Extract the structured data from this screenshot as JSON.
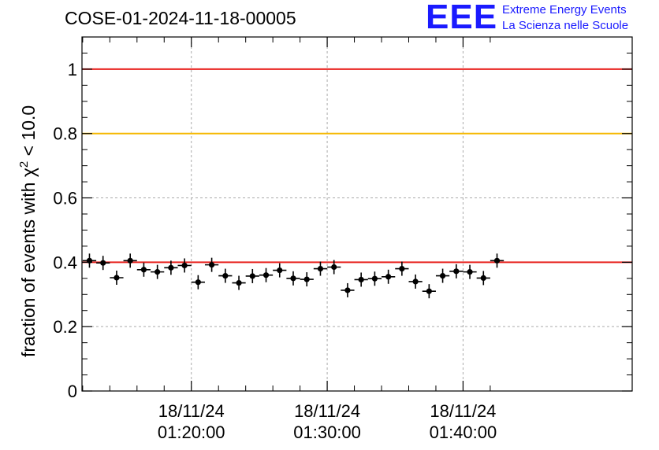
{
  "header": {
    "run_id": "COSE-01-2024-11-18-00005",
    "logo_mark": "EEE",
    "logo_line1": "Extreme Energy Events",
    "logo_line2": "La Scienza nelle Scuole"
  },
  "chart_data": {
    "type": "scatter",
    "ylabel_main": "fraction of events with χ",
    "ylabel_sup": "2",
    "ylabel_tail": " < 10.0",
    "ylim": [
      0,
      1.1
    ],
    "yticks": [
      {
        "value": 0,
        "label": "0"
      },
      {
        "value": 0.2,
        "label": "0.2"
      },
      {
        "value": 0.4,
        "label": "0.4"
      },
      {
        "value": 0.6,
        "label": "0.6"
      },
      {
        "value": 0.8,
        "label": "0.8"
      },
      {
        "value": 1,
        "label": "1"
      }
    ],
    "x_unit": "minutes after 18/11/24 01:10:00",
    "xlim": [
      1.95,
      42.45
    ],
    "xticks": [
      {
        "value": 10,
        "date": "18/11/24",
        "time": "01:20:00"
      },
      {
        "value": 20,
        "date": "18/11/24",
        "time": "01:30:00"
      },
      {
        "value": 30,
        "date": "18/11/24",
        "time": "01:40:00"
      }
    ],
    "minor_xticks": [
      2,
      4,
      6,
      8,
      12,
      14,
      16,
      18,
      22,
      24,
      26,
      28,
      32
    ],
    "grid": true,
    "reference_lines": [
      {
        "y": 1.0,
        "color": "#e8231f"
      },
      {
        "y": 0.8,
        "color": "#f5b800"
      },
      {
        "y": 0.4,
        "color": "#e8231f"
      }
    ],
    "x_halfwidth": 0.5,
    "y_error": 0.022,
    "points": [
      {
        "x": 2.5,
        "y": 0.405
      },
      {
        "x": 3.5,
        "y": 0.398
      },
      {
        "x": 4.5,
        "y": 0.352
      },
      {
        "x": 5.5,
        "y": 0.405
      },
      {
        "x": 6.5,
        "y": 0.377
      },
      {
        "x": 7.5,
        "y": 0.37
      },
      {
        "x": 8.5,
        "y": 0.383
      },
      {
        "x": 9.5,
        "y": 0.39
      },
      {
        "x": 10.5,
        "y": 0.338
      },
      {
        "x": 11.5,
        "y": 0.392
      },
      {
        "x": 12.5,
        "y": 0.358
      },
      {
        "x": 13.5,
        "y": 0.336
      },
      {
        "x": 14.5,
        "y": 0.357
      },
      {
        "x": 15.5,
        "y": 0.36
      },
      {
        "x": 16.5,
        "y": 0.375
      },
      {
        "x": 17.5,
        "y": 0.35
      },
      {
        "x": 18.5,
        "y": 0.347
      },
      {
        "x": 19.5,
        "y": 0.38
      },
      {
        "x": 20.5,
        "y": 0.385
      },
      {
        "x": 21.5,
        "y": 0.313
      },
      {
        "x": 22.5,
        "y": 0.346
      },
      {
        "x": 23.5,
        "y": 0.349
      },
      {
        "x": 24.5,
        "y": 0.355
      },
      {
        "x": 25.5,
        "y": 0.38
      },
      {
        "x": 26.5,
        "y": 0.34
      },
      {
        "x": 27.5,
        "y": 0.31
      },
      {
        "x": 28.5,
        "y": 0.358
      },
      {
        "x": 29.5,
        "y": 0.372
      },
      {
        "x": 30.5,
        "y": 0.37
      },
      {
        "x": 31.5,
        "y": 0.351
      },
      {
        "x": 32.5,
        "y": 0.405
      }
    ]
  }
}
